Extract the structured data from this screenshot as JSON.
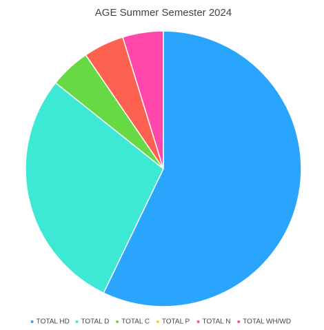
{
  "chart_data": {
    "type": "pie",
    "title": "AGE Summer Semester 2024",
    "categories": [
      "TOTAL HD",
      "TOTAL D",
      "TOTAL C",
      "TOTAL P",
      "TOTAL N",
      "TOTAL WH/WD"
    ],
    "values": [
      12,
      6,
      1,
      0,
      1,
      1
    ],
    "colors": [
      "#2aa5fd",
      "#3de8d4",
      "#66d945",
      "#ffcc33",
      "#ff6150",
      "#ff46aa"
    ],
    "legend": "bottom"
  }
}
